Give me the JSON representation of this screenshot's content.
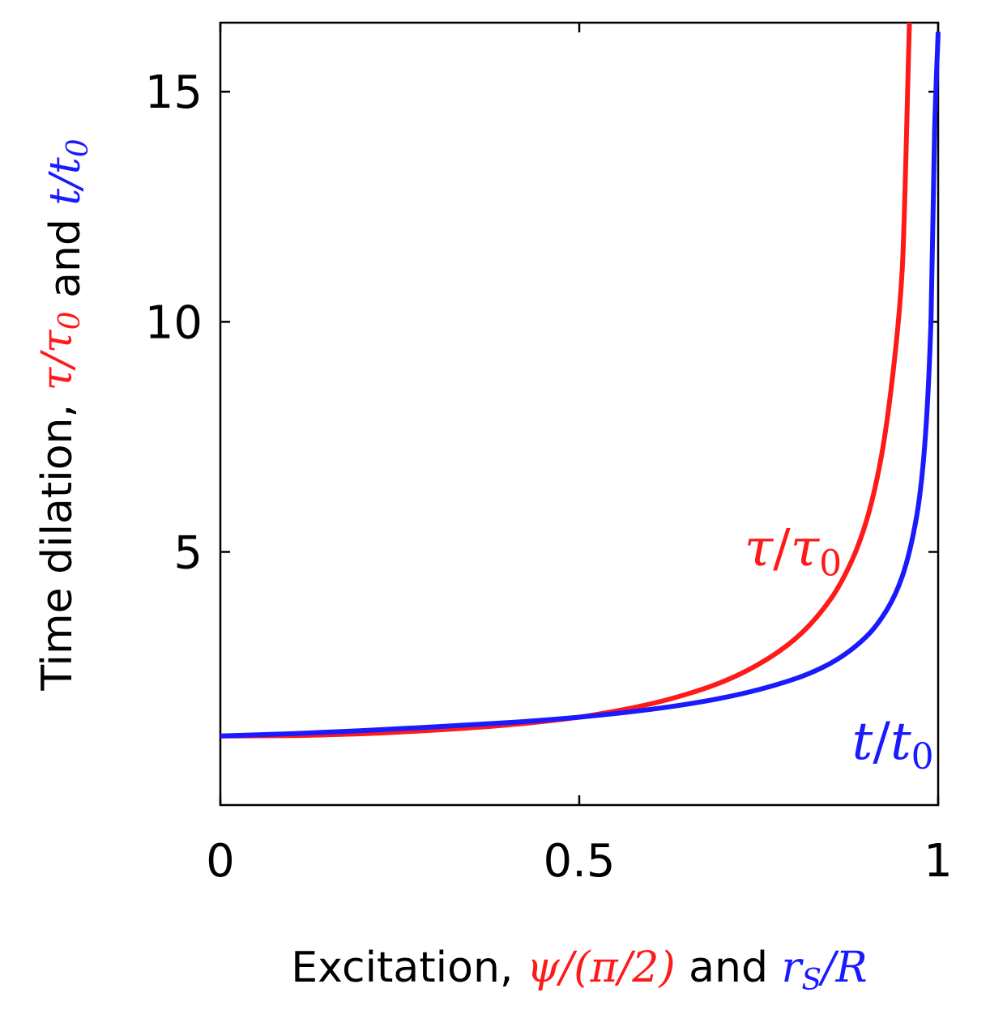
{
  "chart_data": {
    "type": "line",
    "xlabel": {
      "prefix": "Excitation, ",
      "red_part": "ψ/(π/2)",
      "middle": " and ",
      "blue_part": "r_S/R"
    },
    "ylabel": {
      "prefix": "Time dilation, ",
      "red_part": "τ/τ_0",
      "middle": " and ",
      "blue_part": "t/t_0"
    },
    "xlim": [
      0,
      1
    ],
    "ylim": [
      -0.5,
      16.5
    ],
    "x_ticks": [
      0,
      0.5,
      1
    ],
    "x_tick_labels": [
      "0",
      "0.5",
      "1"
    ],
    "y_ticks": [
      5,
      10,
      15
    ],
    "y_tick_labels": [
      "5",
      "10",
      "15"
    ],
    "grid": false,
    "colors": {
      "tau": "#ff1a1a",
      "t": "#1a1aff",
      "axis": "#000000"
    },
    "series": [
      {
        "name": "τ/τ_0",
        "color": "#ff1a1a",
        "x": [
          0,
          0.1,
          0.2,
          0.3,
          0.4,
          0.5,
          0.55,
          0.6,
          0.65,
          0.7,
          0.75,
          0.8,
          0.85,
          0.88,
          0.9,
          0.92,
          0.94,
          0.95,
          0.96
        ],
        "y": [
          1.0,
          1.01,
          1.05,
          1.13,
          1.24,
          1.41,
          1.54,
          1.7,
          1.91,
          2.18,
          2.56,
          3.1,
          3.97,
          4.82,
          5.67,
          7.0,
          9.3,
          11.15,
          16.5
        ]
      },
      {
        "name": "t/t_0",
        "color": "#1a1aff",
        "x": [
          0,
          0.1,
          0.2,
          0.3,
          0.4,
          0.5,
          0.6,
          0.7,
          0.8,
          0.85,
          0.9,
          0.93,
          0.95,
          0.97,
          0.98,
          0.99,
          0.995,
          1.0
        ],
        "y": [
          1.0,
          1.05,
          1.12,
          1.2,
          1.29,
          1.41,
          1.58,
          1.83,
          2.24,
          2.58,
          3.16,
          3.78,
          4.47,
          5.77,
          7.07,
          10.0,
          14.14,
          16.3
        ]
      }
    ],
    "annotations": [
      {
        "series": "τ/τ_0",
        "base": "τ",
        "sub": "0",
        "color": "#ff1a1a",
        "x": 0.73,
        "y": 4.7
      },
      {
        "series": "t/t_0",
        "base": "t",
        "sub": "0",
        "color": "#1a1aff",
        "x": 0.88,
        "y": 0.5
      }
    ]
  }
}
